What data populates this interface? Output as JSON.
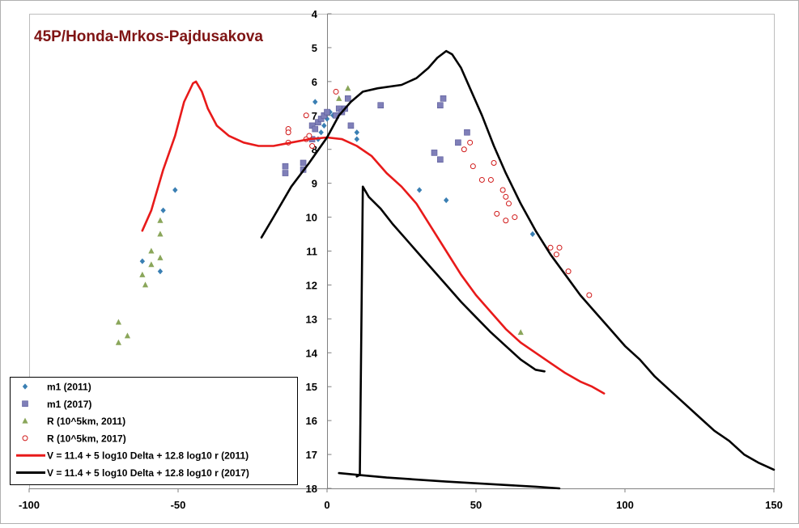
{
  "chart_data": {
    "type": "scatter",
    "title": "45P/Honda-Mrkos-Pajdusakova",
    "xlim": [
      -100,
      150
    ],
    "ylim": [
      4,
      18
    ],
    "y_reversed": true,
    "x_ticks": [
      -100,
      -50,
      0,
      50,
      100,
      150
    ],
    "x_tick_labels": [
      "-100",
      "-50",
      "0",
      "50",
      "100",
      "150"
    ],
    "y_ticks": [
      4,
      5,
      6,
      7,
      8,
      9,
      10,
      11,
      12,
      13,
      14,
      15,
      16,
      17,
      18
    ],
    "y_tick_labels": [
      "4",
      "5",
      "6",
      "7",
      "8",
      "9",
      "10",
      "11",
      "12",
      "13",
      "14",
      "15",
      "16",
      "17",
      "18"
    ],
    "grid": false,
    "legend_position": "bottom-left",
    "colors": {
      "title": "#7f1414",
      "m1_2011": "#3a7fb3",
      "m1_2017": "#7f7fb8",
      "R_2011": "#8aa65a",
      "R_2017": "#d01818",
      "V_2011": "#e81a1a",
      "V_2017": "#000000"
    },
    "series": [
      {
        "name": "m1 (2011)",
        "kind": "scatter",
        "marker": "diamond",
        "points": [
          [
            -51,
            9.2
          ],
          [
            -55,
            9.8
          ],
          [
            -62,
            11.3
          ],
          [
            -56,
            11.6
          ],
          [
            -4,
            6.6
          ],
          [
            -3,
            7.7
          ],
          [
            -2,
            7.5
          ],
          [
            -1,
            7.3
          ],
          [
            0,
            7.1
          ],
          [
            1,
            6.9
          ],
          [
            2,
            7.0
          ],
          [
            10,
            7.5
          ],
          [
            10,
            7.7
          ],
          [
            31,
            9.2
          ],
          [
            40,
            9.5
          ],
          [
            69,
            10.5
          ]
        ]
      },
      {
        "name": "m1 (2017)",
        "kind": "scatter",
        "marker": "square",
        "points": [
          [
            -14,
            8.5
          ],
          [
            -14,
            8.7
          ],
          [
            -8,
            8.4
          ],
          [
            -8,
            8.6
          ],
          [
            -5,
            7.3
          ],
          [
            -5,
            7.7
          ],
          [
            -4,
            7.4
          ],
          [
            -3,
            7.2
          ],
          [
            -2,
            7.1
          ],
          [
            -1,
            7.0
          ],
          [
            0,
            6.9
          ],
          [
            3,
            7.0
          ],
          [
            4,
            6.8
          ],
          [
            5,
            6.9
          ],
          [
            6,
            6.8
          ],
          [
            7,
            6.5
          ],
          [
            8,
            7.3
          ],
          [
            18,
            6.7
          ],
          [
            36,
            8.1
          ],
          [
            38,
            8.3
          ],
          [
            38,
            6.7
          ],
          [
            39,
            6.5
          ],
          [
            44,
            7.8
          ],
          [
            47,
            7.5
          ]
        ]
      },
      {
        "name": "R (10^5km, 2011)",
        "kind": "scatter",
        "marker": "triangle",
        "points": [
          [
            -70,
            13.1
          ],
          [
            -70,
            13.7
          ],
          [
            -67,
            13.5
          ],
          [
            -62,
            11.7
          ],
          [
            -61,
            12.0
          ],
          [
            -59,
            11.0
          ],
          [
            -59,
            11.4
          ],
          [
            -56,
            10.1
          ],
          [
            -56,
            10.5
          ],
          [
            -56,
            11.2
          ],
          [
            4,
            6.5
          ],
          [
            7,
            6.2
          ],
          [
            65,
            13.4
          ]
        ]
      },
      {
        "name": "R (10^5km, 2017)",
        "kind": "scatter",
        "marker": "circle",
        "points": [
          [
            -13,
            7.4
          ],
          [
            -13,
            7.5
          ],
          [
            -13,
            7.8
          ],
          [
            -7,
            7.0
          ],
          [
            -7,
            7.7
          ],
          [
            -6,
            7.6
          ],
          [
            -5,
            7.9
          ],
          [
            3,
            6.3
          ],
          [
            46,
            8.0
          ],
          [
            48,
            7.8
          ],
          [
            49,
            8.5
          ],
          [
            52,
            8.9
          ],
          [
            55,
            8.9
          ],
          [
            56,
            8.4
          ],
          [
            59,
            9.2
          ],
          [
            60,
            9.4
          ],
          [
            61,
            9.6
          ],
          [
            57,
            9.9
          ],
          [
            60,
            10.1
          ],
          [
            63,
            10.0
          ],
          [
            75,
            10.9
          ],
          [
            77,
            11.1
          ],
          [
            78,
            10.9
          ],
          [
            81,
            11.6
          ],
          [
            88,
            12.3
          ]
        ]
      },
      {
        "name": "V = 11.4 + 5 log10 Delta + 12.8 log10 r (2011)",
        "kind": "line",
        "points": [
          [
            -62,
            10.4
          ],
          [
            -59,
            9.8
          ],
          [
            -55,
            8.6
          ],
          [
            -51,
            7.6
          ],
          [
            -48,
            6.6
          ],
          [
            -45,
            6.05
          ],
          [
            -44,
            6.0
          ],
          [
            -42,
            6.3
          ],
          [
            -40,
            6.8
          ],
          [
            -37,
            7.3
          ],
          [
            -33,
            7.6
          ],
          [
            -28,
            7.8
          ],
          [
            -23,
            7.9
          ],
          [
            -18,
            7.9
          ],
          [
            -12,
            7.8
          ],
          [
            -6,
            7.7
          ],
          [
            0,
            7.65
          ],
          [
            5,
            7.7
          ],
          [
            10,
            7.9
          ],
          [
            15,
            8.2
          ],
          [
            20,
            8.7
          ],
          [
            25,
            9.1
          ],
          [
            30,
            9.6
          ],
          [
            35,
            10.3
          ],
          [
            40,
            11.0
          ],
          [
            45,
            11.7
          ],
          [
            50,
            12.3
          ],
          [
            55,
            12.8
          ],
          [
            60,
            13.3
          ],
          [
            65,
            13.7
          ],
          [
            70,
            14.0
          ],
          [
            75,
            14.3
          ],
          [
            80,
            14.6
          ],
          [
            85,
            14.85
          ],
          [
            89,
            15.0
          ],
          [
            93,
            15.2
          ]
        ]
      },
      {
        "name": "V = 11.4 + 5 log10 Delta + 12.8 log10 r (2017)",
        "kind": "line",
        "points": [
          [
            -22,
            10.6
          ],
          [
            -18,
            10.0
          ],
          [
            -12,
            9.1
          ],
          [
            -6,
            8.4
          ],
          [
            -2,
            7.9
          ],
          [
            0,
            7.65
          ],
          [
            4,
            7.0
          ],
          [
            8,
            6.6
          ],
          [
            12,
            6.3
          ],
          [
            17,
            6.2
          ],
          [
            25,
            6.1
          ],
          [
            30,
            5.9
          ],
          [
            34,
            5.6
          ],
          [
            37,
            5.3
          ],
          [
            40,
            5.1
          ],
          [
            42,
            5.2
          ],
          [
            45,
            5.6
          ],
          [
            48,
            6.2
          ],
          [
            52,
            7.0
          ],
          [
            56,
            7.9
          ],
          [
            60,
            8.7
          ],
          [
            65,
            9.6
          ],
          [
            70,
            10.4
          ],
          [
            75,
            11.1
          ],
          [
            80,
            11.7
          ],
          [
            85,
            12.3
          ],
          [
            90,
            12.8
          ],
          [
            95,
            13.3
          ],
          [
            100,
            13.8
          ],
          [
            105,
            14.2
          ],
          [
            110,
            14.7
          ],
          [
            115,
            15.1
          ],
          [
            120,
            15.5
          ],
          [
            125,
            15.9
          ],
          [
            130,
            16.3
          ],
          [
            135,
            16.6
          ],
          [
            140,
            17.0
          ],
          [
            145,
            17.25
          ],
          [
            150,
            17.45
          ]
        ]
      },
      {
        "name": "",
        "kind": "line",
        "color_key": "V_2017",
        "points": [
          [
            10,
            17.65
          ],
          [
            11,
            17.6
          ],
          [
            12,
            9.1
          ],
          [
            14,
            9.4
          ],
          [
            18,
            9.75
          ],
          [
            22,
            10.2
          ],
          [
            26,
            10.6
          ],
          [
            30,
            11.0
          ],
          [
            35,
            11.5
          ],
          [
            40,
            12.0
          ],
          [
            45,
            12.5
          ],
          [
            50,
            12.95
          ],
          [
            55,
            13.4
          ],
          [
            60,
            13.8
          ],
          [
            65,
            14.2
          ],
          [
            70,
            14.5
          ],
          [
            73,
            14.55
          ]
        ]
      },
      {
        "name": "",
        "kind": "line",
        "color_key": "V_2017",
        "points": [
          [
            4,
            17.55
          ],
          [
            10,
            17.6
          ],
          [
            20,
            17.68
          ],
          [
            40,
            17.8
          ],
          [
            60,
            17.9
          ],
          [
            70,
            17.95
          ],
          [
            78,
            18.0
          ]
        ]
      }
    ],
    "legend": [
      {
        "label": "m1 (2011)",
        "marker": "diamond",
        "color_key": "m1_2011"
      },
      {
        "label": "m1 (2017)",
        "marker": "square",
        "color_key": "m1_2017"
      },
      {
        "label": "R (10^5km, 2011)",
        "marker": "triangle",
        "color_key": "R_2011"
      },
      {
        "label": "R (10^5km, 2017)",
        "marker": "circle",
        "color_key": "R_2017"
      },
      {
        "label": "V = 11.4 + 5 log10 Delta + 12.8 log10 r (2011)",
        "marker": "line",
        "color_key": "V_2011"
      },
      {
        "label": "V = 11.4 + 5 log10 Delta + 12.8 log10 r (2017)",
        "marker": "line",
        "color_key": "V_2017"
      }
    ]
  }
}
